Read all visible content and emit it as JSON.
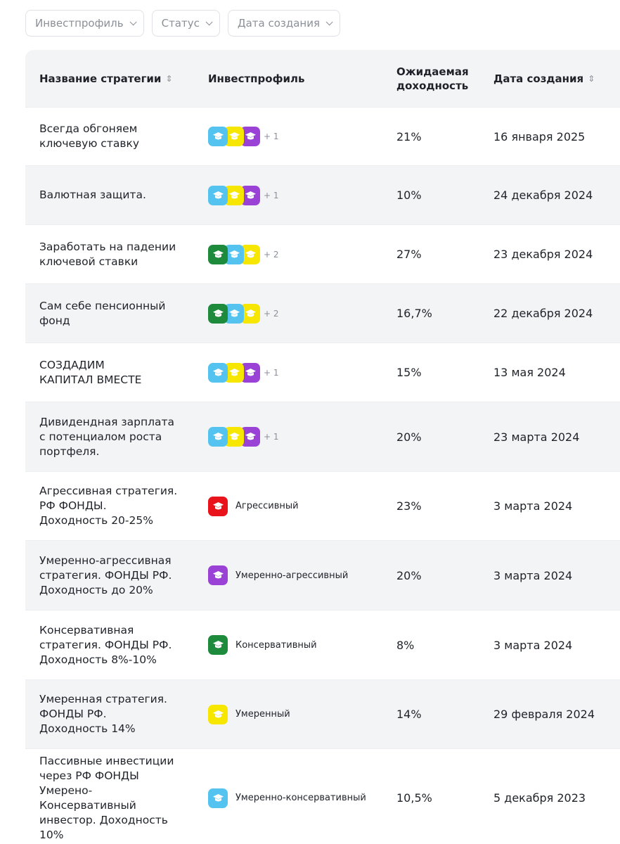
{
  "filters": [
    {
      "label": "Инвестпрофиль"
    },
    {
      "label": "Статус"
    },
    {
      "label": "Дата создания"
    }
  ],
  "columns": {
    "name": "Название стратегии",
    "profile": "Инвестпрофиль",
    "yield_line1": "Ожидаемая",
    "yield_line2": "доходность",
    "date": "Дата создания"
  },
  "profile_colors": {
    "aggressive": "#e8131b",
    "moderate_aggressive": "#9b42d6",
    "conservative": "#1e8a3c",
    "moderate": "#f7e600",
    "moderate_conservative": "#55c3ef"
  },
  "rows": [
    {
      "name": "Всегда обгоняем\nключевую ставку",
      "profiles": [
        "moderate_conservative",
        "moderate",
        "moderate_aggressive"
      ],
      "more": "+ 1",
      "profile_label": "",
      "yield": "21%",
      "date": "16 января 2025"
    },
    {
      "name": "Валютная защита.",
      "profiles": [
        "moderate_conservative",
        "moderate",
        "moderate_aggressive"
      ],
      "more": "+ 1",
      "profile_label": "",
      "yield": "10%",
      "date": "24 декабря 2024"
    },
    {
      "name": "Заработать на падении\nключевой ставки",
      "profiles": [
        "conservative",
        "moderate_conservative",
        "moderate"
      ],
      "more": "+ 2",
      "profile_label": "",
      "yield": "27%",
      "date": "23 декабря 2024"
    },
    {
      "name": "Сам себе пенсионный\nфонд",
      "profiles": [
        "conservative",
        "moderate_conservative",
        "moderate"
      ],
      "more": "+ 2",
      "profile_label": "",
      "yield": "16,7%",
      "date": "22 декабря 2024"
    },
    {
      "name": "СОЗДАДИМ\nКАПИТАЛ ВМЕСТЕ",
      "profiles": [
        "moderate_conservative",
        "moderate",
        "moderate_aggressive"
      ],
      "more": "+ 1",
      "profile_label": "",
      "yield": "15%",
      "date": "13 мая 2024"
    },
    {
      "name": "Дивидендная зарплата\nс потенциалом роста\nпортфеля.",
      "profiles": [
        "moderate_conservative",
        "moderate",
        "moderate_aggressive"
      ],
      "more": "+ 1",
      "profile_label": "",
      "yield": "20%",
      "date": "23 марта 2024"
    },
    {
      "name": "Агрессивная стратегия.\nРФ ФОНДЫ.\nДоходность 20-25%",
      "profiles": [
        "aggressive"
      ],
      "more": "",
      "profile_label": "Агрессивный",
      "yield": "23%",
      "date": "3 марта 2024"
    },
    {
      "name": "Умеренно-агрессивная\nстратегия. ФОНДЫ РФ.\nДоходность до 20%",
      "profiles": [
        "moderate_aggressive"
      ],
      "more": "",
      "profile_label": "Умеренно-агрессивный",
      "yield": "20%",
      "date": "3 марта 2024"
    },
    {
      "name": "Консервативная\nстратегия. ФОНДЫ РФ.\nДоходность 8%-10%",
      "profiles": [
        "conservative"
      ],
      "more": "",
      "profile_label": "Консервативный",
      "yield": "8%",
      "date": "3 марта 2024"
    },
    {
      "name": "Умеренная стратегия.\nФОНДЫ РФ.\nДоходность 14%",
      "profiles": [
        "moderate"
      ],
      "more": "",
      "profile_label": "Умеренный",
      "yield": "14%",
      "date": "29 февраля 2024"
    },
    {
      "name": "Пассивные инвестиции\nчерез РФ ФОНДЫ\nУмерено-\nКонсервативный\nинвестор. Доходность\n10%",
      "profiles": [
        "moderate_conservative"
      ],
      "more": "",
      "profile_label": "Умеренно-консервативный",
      "yield": "10,5%",
      "date": "5 декабря 2023"
    }
  ]
}
